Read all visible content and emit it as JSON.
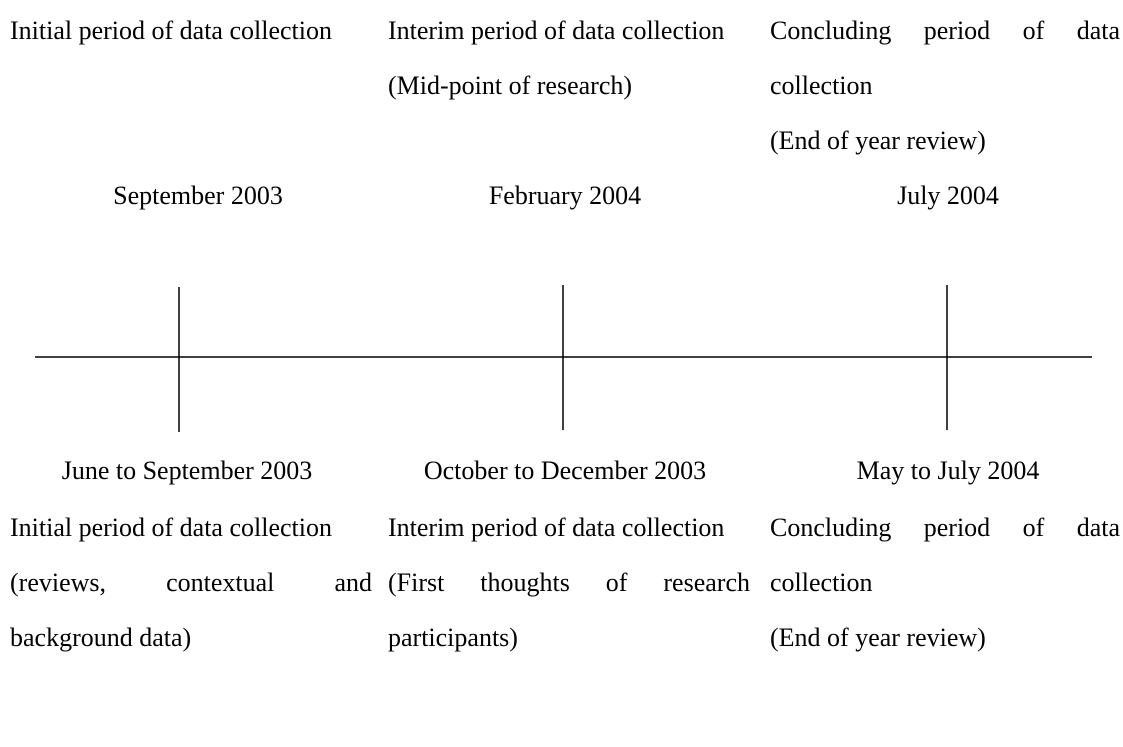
{
  "top": [
    {
      "heading": "Initial period of data collection",
      "date": "September 2003"
    },
    {
      "heading": "Interim period of data collection",
      "note": "(Mid-point of research)",
      "date": "February 2004"
    },
    {
      "heading": "Concluding period of data collection",
      "note": "(End of year review)",
      "date": "July 2004"
    }
  ],
  "bottom": [
    {
      "date": "June to September 2003",
      "heading": "Initial period of data collection",
      "note": "(reviews, contextual and background data)"
    },
    {
      "date": "October to December 2003",
      "heading": "Interim period of data collection",
      "note": "(First thoughts of research participants)"
    },
    {
      "date": "May to July 2004",
      "heading": "Concluding period of data collection",
      "note": "(End of year review)"
    }
  ]
}
